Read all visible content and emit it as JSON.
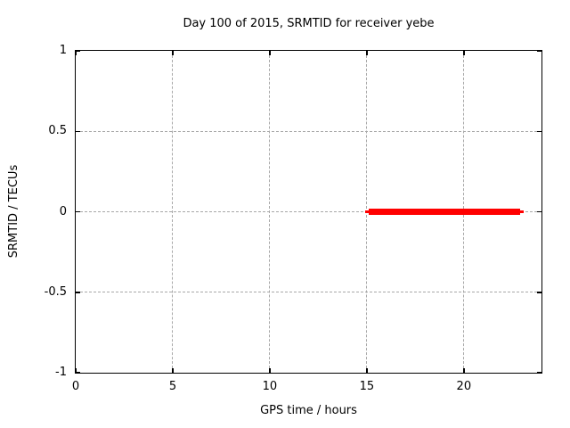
{
  "chart_data": {
    "type": "line",
    "title": "Day 100 of 2015, SRMTID for receiver yebe",
    "xlabel": "GPS time / hours",
    "ylabel": "SRMTID / TECUs",
    "xlim": [
      0,
      24
    ],
    "ylim": [
      -1,
      1
    ],
    "xticks": [
      0,
      5,
      10,
      15,
      20
    ],
    "xtick_labels": [
      "0",
      "5",
      "10",
      "15",
      "20"
    ],
    "yticks": [
      1,
      0.5,
      0,
      -0.5,
      -1
    ],
    "ytick_labels": [
      "1",
      "0.5",
      "0",
      "-0.5",
      "-1"
    ],
    "grid": true,
    "legend": "none",
    "background_color": "#ffffff",
    "axis_color": "#000000",
    "grid_color": "#a8a8a8",
    "series": [
      {
        "name": "SRMTID",
        "style": "line",
        "color": "#ff0000",
        "y": 0,
        "x_start": 15.0,
        "x_end": 23.0
      }
    ]
  }
}
